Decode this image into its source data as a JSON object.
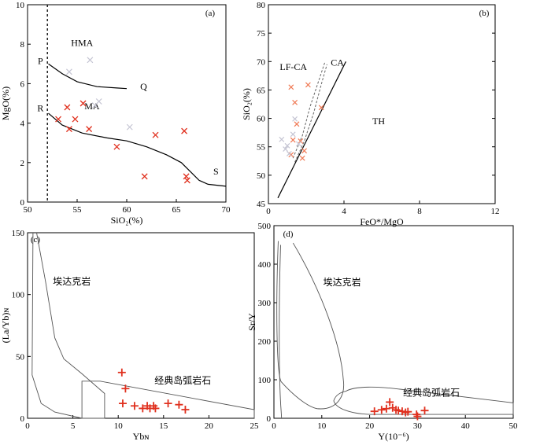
{
  "chart_data": [
    {
      "id": "a",
      "type": "scatter",
      "panel_label": "(a)",
      "xlabel": "SiO₂(%)",
      "ylabel": "MgO(%)",
      "xlim": [
        50,
        70
      ],
      "ylim": [
        0,
        10
      ],
      "xticks": [
        50,
        55,
        60,
        65,
        70
      ],
      "yticks": [
        0,
        2,
        4,
        6,
        8,
        10
      ],
      "vline_x": 52,
      "curves": [
        {
          "points": [
            [
              52.1,
              7.0
            ],
            [
              53.5,
              6.5
            ],
            [
              55,
              6.1
            ],
            [
              57,
              5.85
            ],
            [
              59,
              5.78
            ],
            [
              60,
              5.75
            ]
          ]
        },
        {
          "points": [
            [
              52.1,
              4.5
            ],
            [
              53.5,
              3.9
            ],
            [
              55.5,
              3.5
            ],
            [
              58,
              3.25
            ],
            [
              60,
              3.1
            ],
            [
              62,
              2.8
            ],
            [
              64,
              2.4
            ],
            [
              65.5,
              2.0
            ],
            [
              66.5,
              1.5
            ],
            [
              67.3,
              1.1
            ],
            [
              68.2,
              0.9
            ],
            [
              70,
              0.8
            ]
          ]
        }
      ],
      "annotations": [
        {
          "text": "P",
          "x": 51.3,
          "y": 7.0
        },
        {
          "text": "Q",
          "x": 61.7,
          "y": 5.7
        },
        {
          "text": "R",
          "x": 51.3,
          "y": 4.6
        },
        {
          "text": "S",
          "x": 69.0,
          "y": 1.4
        },
        {
          "text": "HMA",
          "x": 55.5,
          "y": 7.9
        },
        {
          "text": "MA",
          "x": 56.5,
          "y": 4.7
        }
      ],
      "series": [
        {
          "color": "#e0301e",
          "points": [
            [
              53.1,
              4.2
            ],
            [
              54.0,
              4.8
            ],
            [
              54.2,
              3.7
            ],
            [
              54.8,
              4.2
            ],
            [
              55.6,
              5.0
            ],
            [
              56.2,
              3.7
            ],
            [
              59.0,
              2.8
            ],
            [
              61.8,
              1.3
            ],
            [
              62.9,
              3.4
            ],
            [
              65.8,
              3.6
            ],
            [
              66.0,
              1.3
            ],
            [
              66.1,
              1.1
            ]
          ]
        },
        {
          "color": "#c5c5d3",
          "points": [
            [
              54.2,
              6.6
            ],
            [
              56.3,
              7.2
            ],
            [
              57.2,
              5.1
            ],
            [
              56.8,
              4.9
            ],
            [
              60.3,
              3.8
            ]
          ]
        }
      ]
    },
    {
      "id": "b",
      "type": "scatter",
      "panel_label": "(b)",
      "xlabel": "FeO*/MgO",
      "ylabel": "SiO₂(%)",
      "xlim": [
        0,
        12
      ],
      "ylim": [
        45,
        80
      ],
      "xticks": [
        0,
        4,
        8,
        12
      ],
      "yticks": [
        45,
        50,
        55,
        60,
        65,
        70,
        75,
        80
      ],
      "line_ca_th": [
        [
          0.5,
          46
        ],
        [
          4.1,
          70
        ]
      ],
      "dashed_lf": [
        [
          1.3,
          53
        ],
        [
          1.8,
          57
        ],
        [
          2.2,
          62
        ],
        [
          2.6,
          66
        ],
        [
          3.0,
          70
        ]
      ],
      "dashed_lf2": [
        [
          1.4,
          52.3
        ],
        [
          1.9,
          56
        ],
        [
          2.4,
          61
        ],
        [
          2.8,
          66
        ],
        [
          3.1,
          69.5
        ]
      ],
      "annotations": [
        {
          "text": "LF-CA",
          "x": 0.6,
          "y": 68.5
        },
        {
          "text": "CA",
          "x": 3.3,
          "y": 69.3
        },
        {
          "text": "TH",
          "x": 5.5,
          "y": 59
        }
      ],
      "series": [
        {
          "color": "#f07a55",
          "points": [
            [
              1.2,
              65.5
            ],
            [
              2.1,
              65.9
            ],
            [
              1.4,
              62.8
            ],
            [
              1.5,
              59.0
            ],
            [
              1.3,
              56.2
            ],
            [
              1.7,
              56.0
            ],
            [
              1.9,
              54.3
            ],
            [
              1.2,
              53.6
            ],
            [
              1.8,
              53.0
            ],
            [
              2.8,
              61.9
            ]
          ]
        },
        {
          "color": "#c5c5d3",
          "points": [
            [
              0.7,
              56.3
            ],
            [
              1.0,
              55.2
            ],
            [
              0.9,
              54.6
            ],
            [
              1.3,
              57.2
            ],
            [
              1.4,
              59.9
            ],
            [
              1.6,
              55.5
            ],
            [
              1.1,
              53.8
            ]
          ]
        }
      ]
    },
    {
      "id": "c",
      "type": "scatter",
      "panel_label": "(c)",
      "xlabel": "Ybɴ",
      "ylabel": "(La/Yb)ɴ",
      "xlim": [
        0,
        25
      ],
      "ylim": [
        0,
        150
      ],
      "xticks": [
        0,
        5,
        10,
        15,
        20,
        25
      ],
      "yticks": [
        0,
        50,
        100,
        150
      ],
      "region_labels": [
        {
          "text": "埃达克岩",
          "x": 2.8,
          "y": 108
        },
        {
          "text": "经典岛弧岩石",
          "x": 14.0,
          "y": 28
        }
      ],
      "adakite_outline": [
        [
          1.0,
          150
        ],
        [
          2.0,
          110
        ],
        [
          3.0,
          65
        ],
        [
          4.0,
          48
        ],
        [
          6.0,
          36
        ],
        [
          8.5,
          20
        ],
        [
          8.5,
          0
        ],
        [
          6.0,
          0
        ],
        [
          3.0,
          5
        ],
        [
          1.5,
          12
        ],
        [
          0.5,
          35
        ],
        [
          0.6,
          150
        ]
      ],
      "arc_outline": [
        [
          6.0,
          0
        ],
        [
          6.0,
          30
        ],
        [
          8.0,
          30
        ],
        [
          25.0,
          7
        ],
        [
          25.0,
          0
        ]
      ],
      "series": [
        {
          "color": "#e0301e",
          "points": [
            [
              10.4,
              37
            ],
            [
              10.8,
              24
            ],
            [
              10.5,
              12
            ],
            [
              11.8,
              10
            ],
            [
              12.7,
              8
            ],
            [
              13.2,
              10
            ],
            [
              13.5,
              8
            ],
            [
              13.9,
              10
            ],
            [
              14.1,
              8
            ],
            [
              15.5,
              12
            ],
            [
              16.7,
              11
            ],
            [
              17.4,
              7
            ]
          ]
        }
      ]
    },
    {
      "id": "d",
      "type": "scatter",
      "panel_label": "(d)",
      "xlabel": "Y(10⁻⁶)",
      "ylabel": "Sr/Y",
      "xlim": [
        0,
        50
      ],
      "ylim": [
        0,
        500
      ],
      "xticks": [
        0,
        10,
        20,
        30,
        40,
        50
      ],
      "yticks": [
        0,
        100,
        200,
        300,
        400,
        500
      ],
      "region_labels": [
        {
          "text": "埃达克岩",
          "x": 10.3,
          "y": 345
        },
        {
          "text": "经典岛弧岩石",
          "x": 27.0,
          "y": 58
        }
      ],
      "series": [
        {
          "color": "#e0301e",
          "points": [
            [
              21.0,
              18
            ],
            [
              22.5,
              22
            ],
            [
              23.5,
              25
            ],
            [
              24.2,
              42
            ],
            [
              24.8,
              27
            ],
            [
              25.5,
              22
            ],
            [
              26.0,
              20
            ],
            [
              26.8,
              18
            ],
            [
              27.5,
              15
            ],
            [
              28.0,
              17
            ],
            [
              29.8,
              10
            ],
            [
              31.5,
              20
            ],
            [
              30.0,
              5
            ]
          ]
        }
      ]
    }
  ]
}
